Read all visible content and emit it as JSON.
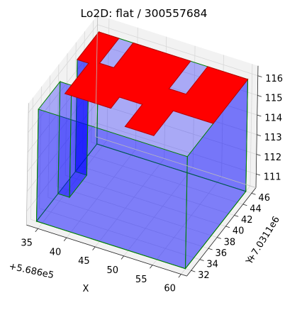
{
  "chart_data": {
    "type": "3d-surface",
    "title": "Lo2D: flat / 300557684",
    "xlabel": "X",
    "ylabel": "Y",
    "x_offset_label": "+5.686e5",
    "y_offset_label": "+7.0311e6",
    "xlim": [
      33,
      61
    ],
    "ylim": [
      31,
      47
    ],
    "zlim": [
      110.3,
      116.5
    ],
    "x_ticks": [
      35,
      40,
      45,
      50,
      55,
      60
    ],
    "y_ticks": [
      32,
      34,
      36,
      38,
      40,
      42,
      44,
      46
    ],
    "z_ticks": [
      111,
      112,
      113,
      114,
      115,
      116
    ],
    "footprint": {
      "outline": [
        [
          34,
          37
        ],
        [
          34,
          32
        ],
        [
          60,
          32
        ],
        [
          60,
          46
        ],
        [
          34,
          46
        ],
        [
          34,
          41
        ]
      ],
      "bottom_z": 110.3,
      "top_z": 116.0,
      "face_color": "#0000ff",
      "edge_color": "#008000",
      "roof_color": "#ff0000"
    },
    "roof_polygon": [
      [
        34,
        46
      ],
      [
        37.5,
        46
      ],
      [
        37.5,
        41.5
      ],
      [
        40,
        41.5
      ],
      [
        40,
        46
      ],
      [
        50,
        46
      ],
      [
        50,
        41
      ],
      [
        53,
        41
      ],
      [
        53,
        46
      ],
      [
        60,
        46
      ],
      [
        60,
        38
      ],
      [
        53,
        38
      ],
      [
        53,
        33.5
      ],
      [
        48,
        33.5
      ],
      [
        48,
        37.5
      ],
      [
        44,
        37.5
      ],
      [
        44,
        35.5
      ],
      [
        36,
        35.5
      ],
      [
        36,
        41
      ],
      [
        34,
        41
      ]
    ],
    "grid": true,
    "pane_color": "#f2f2f2",
    "grid_color": "#d8d8d8"
  }
}
